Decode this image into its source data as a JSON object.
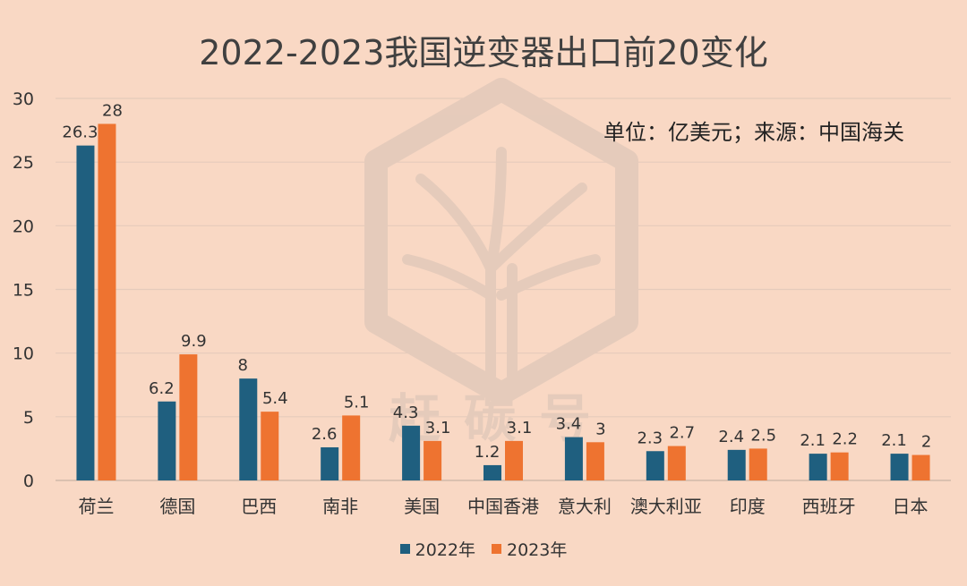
{
  "chart_data": {
    "type": "bar",
    "title": "2022-2023我国逆变器出口前20变化",
    "note": "单位：亿美元；来源：中国海关",
    "watermark": "赶碳号",
    "categories": [
      "荷兰",
      "德国",
      "巴西",
      "南非",
      "美国",
      "中国香港",
      "意大利",
      "澳大利亚",
      "印度",
      "西班牙",
      "日本"
    ],
    "series": [
      {
        "name": "2022年",
        "color": "#1f5f7f",
        "values": [
          26.3,
          6.2,
          8,
          2.6,
          4.3,
          1.2,
          3.4,
          2.3,
          2.4,
          2.1,
          2.1
        ]
      },
      {
        "name": "2023年",
        "color": "#ee7330",
        "values": [
          28,
          9.9,
          5.4,
          5.1,
          3.1,
          3.1,
          3,
          2.7,
          2.5,
          2.2,
          2
        ]
      }
    ],
    "ylim": [
      0,
      30
    ],
    "yticks": [
      0,
      5,
      10,
      15,
      20,
      25,
      30
    ],
    "grid": true,
    "legend_position": "bottom"
  }
}
